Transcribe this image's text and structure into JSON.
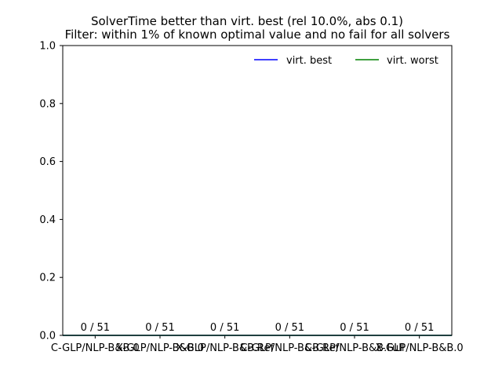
{
  "chart_data": {
    "type": "bar",
    "title": "SolverTime better than virt. best (rel 10.0%, abs 0.1)",
    "subtitle": "Filter: within 1% of known optimal value and no fail for all solvers",
    "xlabel": "",
    "ylabel": "",
    "ylim": [
      0,
      1
    ],
    "yticks": [
      "0.0",
      "0.2",
      "0.4",
      "0.6",
      "0.8",
      "1.0"
    ],
    "categories": [
      "C-GLP/NLP-B&B.0",
      "X-GLP/NLP-B&B.0",
      "X-GLP/NLP-B&B.Ref",
      "C-GLP/NLP-B&B.Ref",
      "C-GLP/NLP-B&B.Full",
      "X-GLP/NLP-B&B.0"
    ],
    "values": [
      0,
      0,
      0,
      0,
      0,
      0
    ],
    "bar_labels": [
      "0 / 51",
      "0 / 51",
      "0 / 51",
      "0 / 51",
      "0 / 51",
      "0 / 51"
    ],
    "reference_lines": [
      {
        "name": "virt. best",
        "value": 0,
        "color": "#0000ff"
      },
      {
        "name": "virt. worst",
        "value": 0,
        "color": "#008000"
      }
    ],
    "legend_position": "top-right",
    "legend_frame": false,
    "grid": false
  }
}
